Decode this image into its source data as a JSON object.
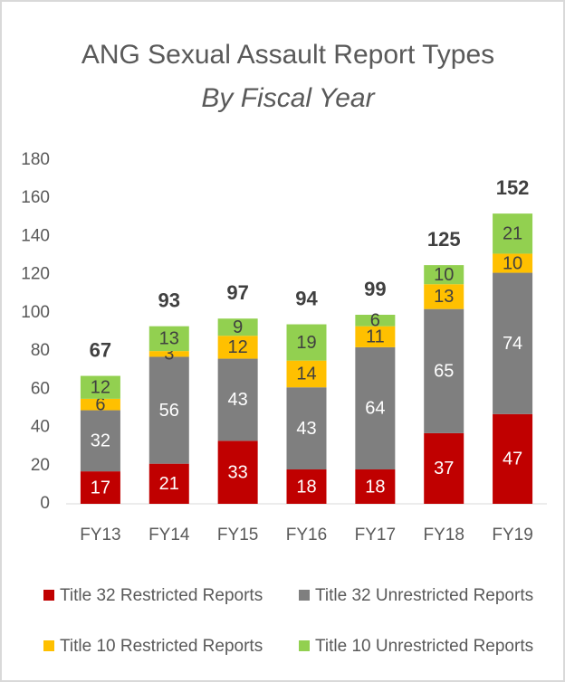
{
  "chart_data": {
    "type": "stacked_bar",
    "title": "ANG Sexual Assault Report Types",
    "subtitle": "By Fiscal Year",
    "categories": [
      "FY13",
      "FY14",
      "FY15",
      "FY16",
      "FY17",
      "FY18",
      "FY19"
    ],
    "series": [
      {
        "name": "Title 32 Restricted Reports",
        "color": "#c00000",
        "values": [
          17,
          21,
          33,
          18,
          18,
          37,
          47
        ]
      },
      {
        "name": "Title 32 Unrestricted Reports",
        "color": "#7f7f7f",
        "values": [
          32,
          56,
          43,
          43,
          64,
          65,
          74
        ]
      },
      {
        "name": "Title 10 Restricted Reports",
        "color": "#ffc000",
        "values": [
          6,
          3,
          12,
          14,
          11,
          13,
          10
        ]
      },
      {
        "name": "Title 10 Unrestricted Reports",
        "color": "#92d050",
        "values": [
          12,
          13,
          9,
          19,
          6,
          10,
          21
        ]
      }
    ],
    "totals": [
      67,
      93,
      97,
      94,
      99,
      125,
      152
    ],
    "ylim": [
      0,
      180
    ],
    "yticks": [
      0,
      20,
      40,
      60,
      80,
      100,
      120,
      140,
      160,
      180
    ],
    "grid": false
  }
}
